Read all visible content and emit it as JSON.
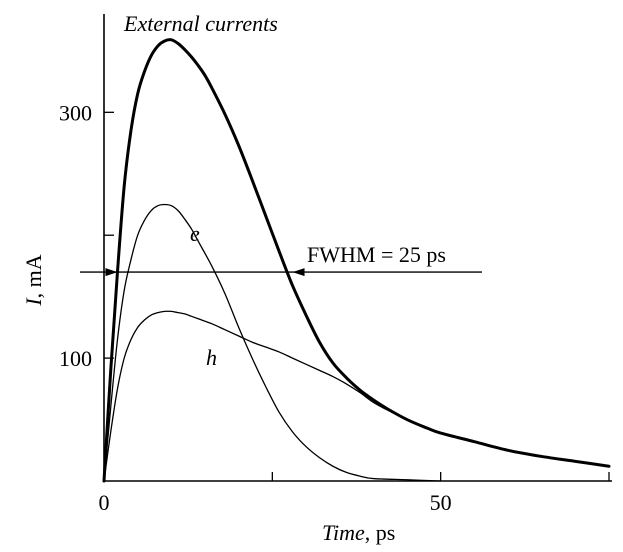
{
  "chart_data": {
    "type": "line",
    "title": "External currents",
    "xlabel": {
      "italic": "Time",
      "rest": ", ps"
    },
    "ylabel": {
      "italic": "I",
      "rest": ", mA"
    },
    "xlim": [
      0,
      75
    ],
    "ylim": [
      0,
      380
    ],
    "x_ticks": [
      0,
      25,
      50,
      75
    ],
    "x_tick_labels": [
      "0",
      "",
      "50",
      ""
    ],
    "y_ticks": [
      100,
      200,
      300
    ],
    "y_tick_labels": [
      "100",
      "",
      "300"
    ],
    "grid": false,
    "series": [
      {
        "name": "",
        "style": "thick",
        "x": [
          0,
          1,
          2,
          3,
          4,
          5,
          6,
          7,
          8,
          9,
          10,
          11,
          12,
          13,
          14,
          15,
          16,
          18,
          20,
          22,
          24,
          26,
          28,
          30,
          32,
          34,
          36,
          38,
          40,
          42,
          45,
          48,
          50,
          55,
          60,
          65,
          70,
          75
        ],
        "y": [
          0,
          90,
          170,
          240,
          285,
          315,
          333,
          346,
          354,
          358,
          359,
          356,
          351,
          345,
          338,
          330,
          320,
          298,
          273,
          245,
          216,
          187,
          159,
          135,
          113,
          96,
          84,
          74,
          66,
          59,
          50,
          43,
          39,
          32,
          25,
          20,
          16,
          12
        ]
      },
      {
        "name": "e",
        "style": "thin",
        "x": [
          0,
          1,
          2,
          3,
          4,
          5,
          6,
          7,
          8,
          9,
          10,
          11,
          12,
          13,
          14,
          16,
          18,
          20,
          22,
          24,
          26,
          28,
          30,
          32,
          34,
          36,
          38,
          40,
          45,
          50
        ],
        "y": [
          0,
          60,
          115,
          155,
          180,
          200,
          212,
          220,
          224,
          225,
          224,
          220,
          213,
          205,
          195,
          175,
          152,
          125,
          100,
          77,
          56,
          40,
          28,
          19,
          12,
          7,
          4,
          2,
          1,
          0
        ]
      },
      {
        "name": "h",
        "style": "thin",
        "x": [
          0,
          1,
          2,
          3,
          4,
          5,
          6,
          7,
          8,
          9,
          10,
          11,
          12,
          13,
          14,
          16,
          18,
          20,
          22,
          24,
          26,
          28,
          30,
          32,
          34,
          36,
          38,
          40,
          42,
          45,
          48,
          50,
          55,
          60,
          65,
          70,
          75
        ],
        "y": [
          0,
          40,
          75,
          100,
          115,
          125,
          131,
          135,
          137,
          138,
          138,
          137,
          136,
          134,
          132,
          128,
          123,
          118,
          113,
          109,
          105,
          100,
          95,
          90,
          85,
          79,
          72,
          64,
          58,
          50,
          43,
          39,
          32,
          25,
          20,
          16,
          12
        ]
      }
    ],
    "annotations": {
      "series_e_label": "e",
      "series_h_label": "h",
      "fwhm_label": "FWHM = 25 ps",
      "fwhm_level": 170,
      "fwhm_start": 2,
      "fwhm_end": 28
    }
  }
}
